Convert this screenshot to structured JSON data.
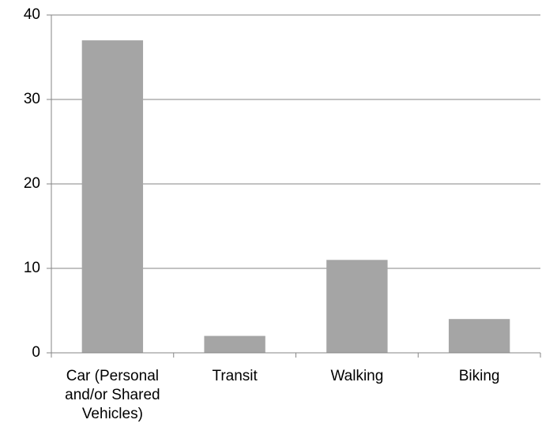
{
  "chart_data": {
    "type": "bar",
    "categories": [
      "Car (Personal and/or Shared Vehicles)",
      "Transit",
      "Walking",
      "Biking"
    ],
    "values": [
      37,
      2,
      11,
      4
    ],
    "color": "#a5a5a5",
    "ylim": [
      0,
      40
    ],
    "yticks": [
      0,
      10,
      20,
      30,
      40
    ],
    "grid": true
  }
}
